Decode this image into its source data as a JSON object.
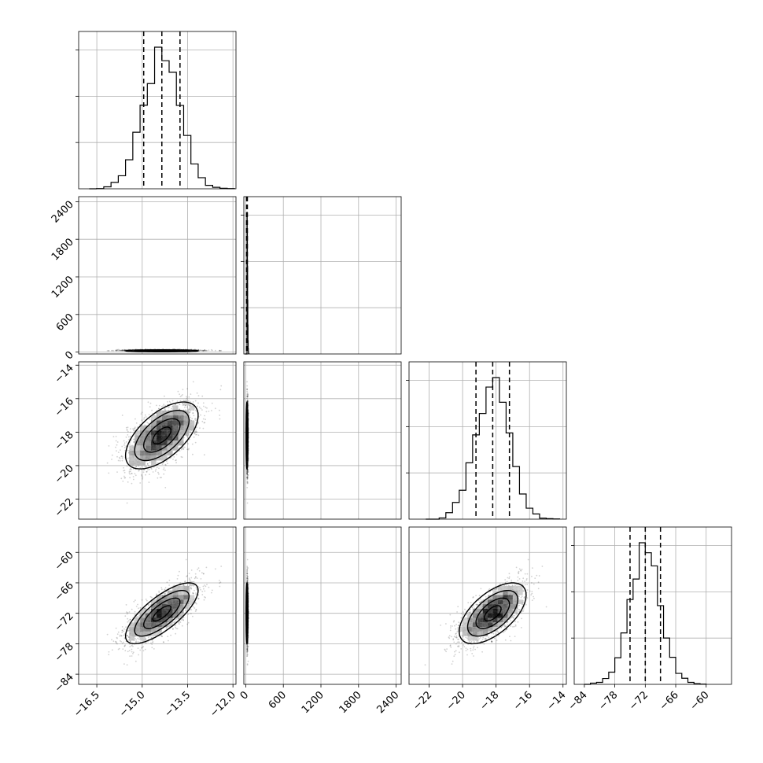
{
  "chart_data": {
    "type": "corner",
    "grid": true,
    "colors": {
      "samples": "#000000",
      "quantile_line": "#000000",
      "grid": "#b0b0b0"
    },
    "parameters": [
      {
        "range": [
          -17.1,
          -11.9
        ],
        "mean": -14.35,
        "sd": 0.6,
        "quantiles": [
          -14.95,
          -14.35,
          -13.75
        ],
        "ticks": [
          -16.5,
          -15.0,
          -13.5,
          -12.0
        ],
        "tick_labels": [
          "−16.5",
          "−15.0",
          "−13.5",
          "−12.0"
        ]
      },
      {
        "range": [
          -30,
          2480
        ],
        "mean": 20,
        "sd": 8,
        "quantiles": [
          14,
          20,
          26
        ],
        "ticks": [
          0,
          600,
          1200,
          1800,
          2400
        ],
        "tick_labels": [
          "0",
          "600",
          "1200",
          "1800",
          "2400"
        ]
      },
      {
        "range": [
          -23.2,
          -13.8
        ],
        "mean": -18.2,
        "sd": 1.0,
        "quantiles": [
          -19.2,
          -18.2,
          -17.2
        ],
        "ticks": [
          -22,
          -20,
          -18,
          -16,
          -14
        ],
        "tick_labels": [
          "−22",
          "−20",
          "−18",
          "−16",
          "−14"
        ]
      },
      {
        "range": [
          -86,
          -55
        ],
        "mean": -72,
        "sd": 3.0,
        "quantiles": [
          -75,
          -72,
          -69
        ],
        "ticks": [
          -84,
          -78,
          -72,
          -66,
          -60
        ],
        "tick_labels": [
          "−84",
          "−78",
          "−72",
          "−66",
          "−60"
        ]
      }
    ],
    "correlations": {
      "0-2": 0.6,
      "0-3": 0.75,
      "2-3": 0.6,
      "0-1": 0.0,
      "1-2": 0.0,
      "1-3": 0.0
    },
    "diag_hist_yticks": 3
  }
}
